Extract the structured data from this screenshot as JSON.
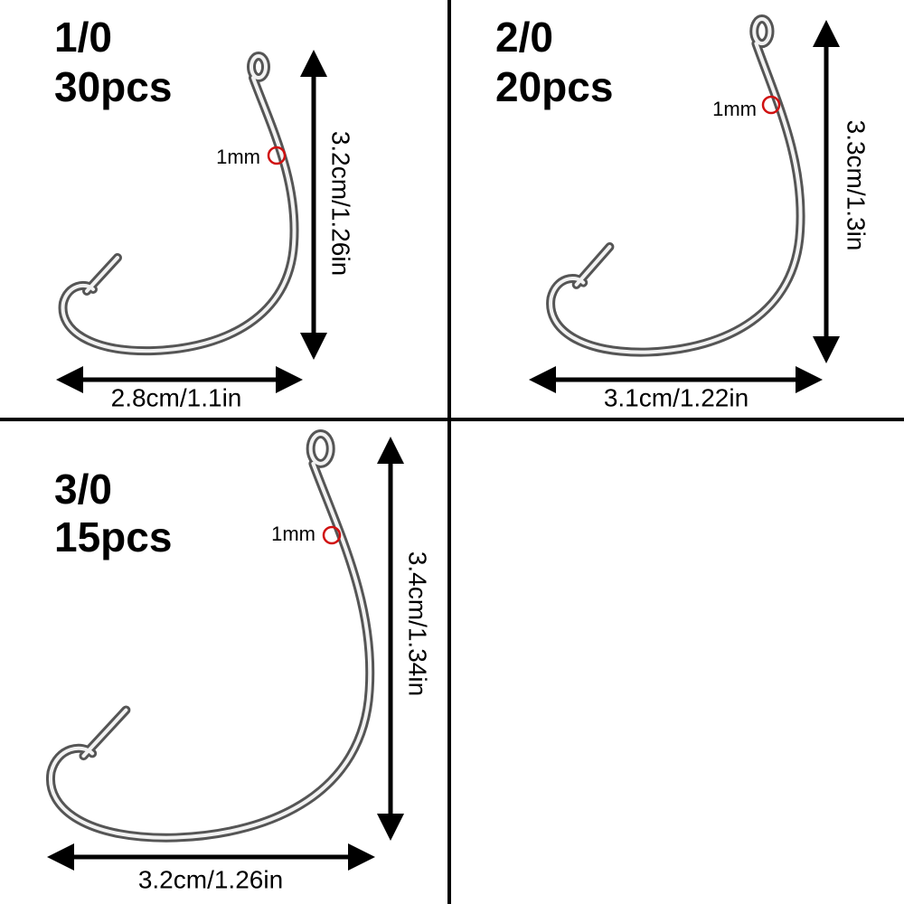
{
  "panels": [
    {
      "size": "1/0",
      "count": "30pcs",
      "wire": "1mm",
      "height": "3.2cm/1.26in",
      "width": "2.8cm/1.1in"
    },
    {
      "size": "2/0",
      "count": "20pcs",
      "wire": "1mm",
      "height": "3.3cm/1.3in",
      "width": "3.1cm/1.22in"
    },
    {
      "size": "3/0",
      "count": "15pcs",
      "wire": "1mm",
      "height": "3.4cm/1.34in",
      "width": "3.2cm/1.26in"
    }
  ]
}
